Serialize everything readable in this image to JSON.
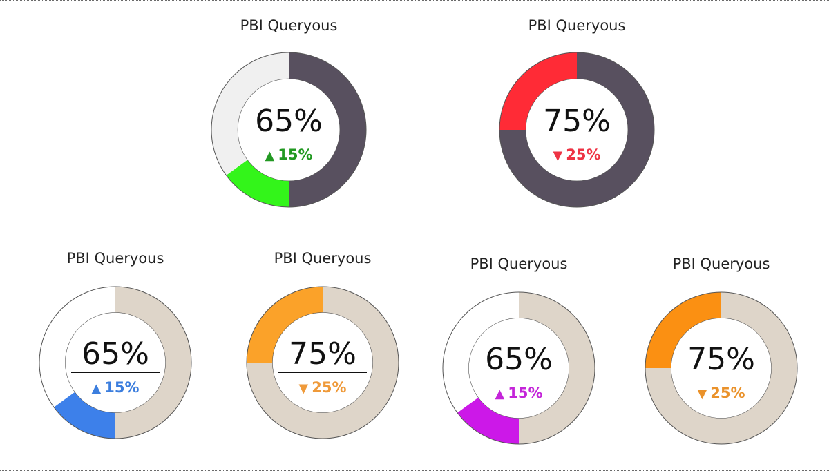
{
  "chart_data": [
    {
      "type": "pie",
      "title": "PBI Queryous",
      "center_value": "65%",
      "delta": {
        "direction": "up",
        "text": "15%"
      },
      "segments": [
        {
          "value": 50,
          "color": "#58505f"
        },
        {
          "value": 15,
          "color": "#33f51a"
        },
        {
          "value": 35,
          "color": "#f0f0f0"
        }
      ],
      "colors": {
        "delta": "#229922"
      }
    },
    {
      "type": "pie",
      "title": "PBI Queryous",
      "center_value": "75%",
      "delta": {
        "direction": "down",
        "text": "25%"
      },
      "segments": [
        {
          "value": 75,
          "color": "#58505f"
        },
        {
          "value": 25,
          "color": "#ff2b36"
        }
      ],
      "colors": {
        "delta": "#ee3344"
      }
    },
    {
      "type": "pie",
      "title": "PBI Queryous",
      "center_value": "65%",
      "delta": {
        "direction": "up",
        "text": "15%"
      },
      "segments": [
        {
          "value": 50,
          "color": "#ded5c9"
        },
        {
          "value": 15,
          "color": "#3d80ea"
        },
        {
          "value": 35,
          "color": "#ffffff"
        }
      ],
      "colors": {
        "delta": "#3c7ede"
      }
    },
    {
      "type": "pie",
      "title": "PBI Queryous",
      "center_value": "75%",
      "delta": {
        "direction": "down",
        "text": "25%"
      },
      "segments": [
        {
          "value": 75,
          "color": "#ded5c9"
        },
        {
          "value": 25,
          "color": "#fba229"
        }
      ],
      "colors": {
        "delta": "#ef9a3a"
      }
    },
    {
      "type": "pie",
      "title": "PBI Queryous",
      "center_value": "65%",
      "delta": {
        "direction": "up",
        "text": "15%"
      },
      "segments": [
        {
          "value": 50,
          "color": "#ded5c9"
        },
        {
          "value": 15,
          "color": "#cc18e8"
        },
        {
          "value": 35,
          "color": "#ffffff"
        }
      ],
      "colors": {
        "delta": "#c425d9"
      }
    },
    {
      "type": "pie",
      "title": "PBI Queryous",
      "center_value": "75%",
      "delta": {
        "direction": "down",
        "text": "25%"
      },
      "segments": [
        {
          "value": 75,
          "color": "#ded5c9"
        },
        {
          "value": 25,
          "color": "#fb9012"
        }
      ],
      "colors": {
        "delta": "#ea922b"
      }
    }
  ]
}
